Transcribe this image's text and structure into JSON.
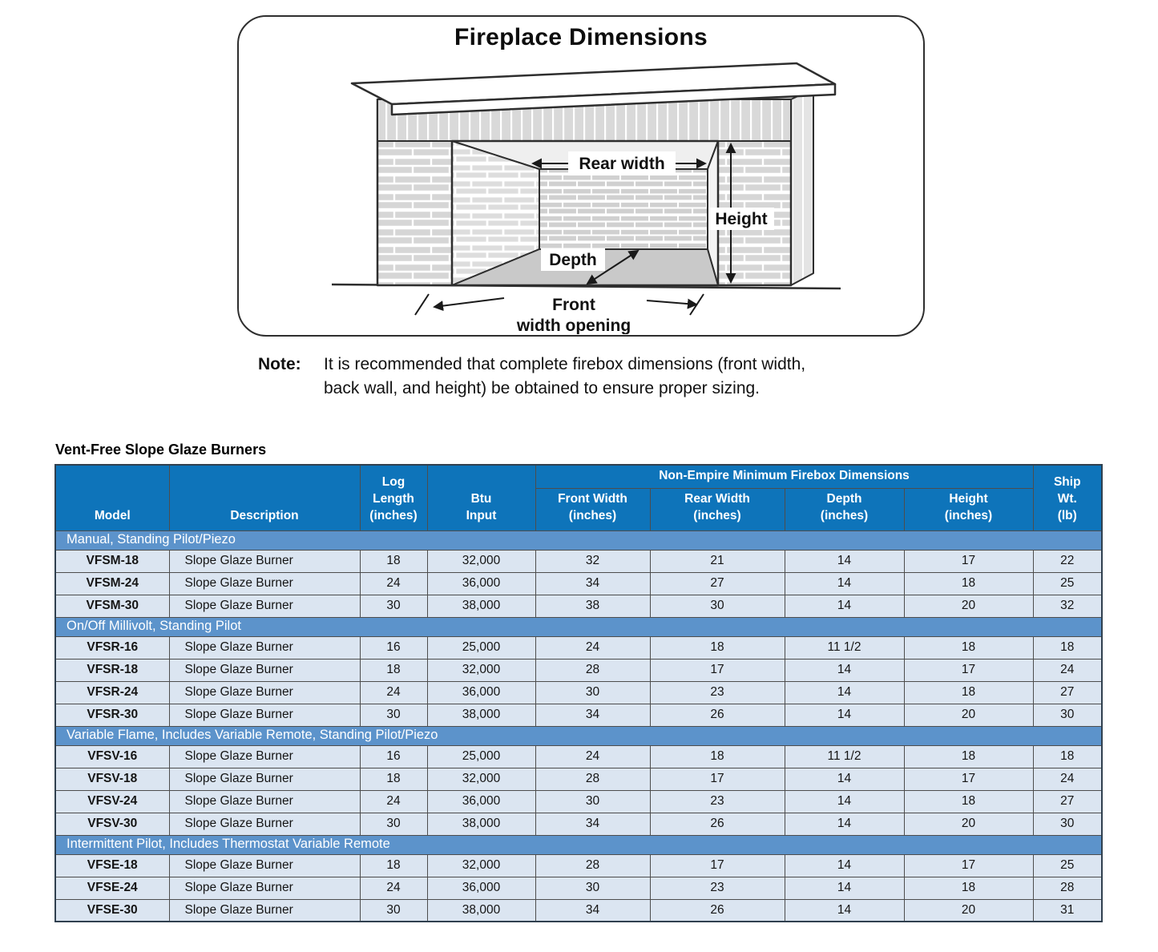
{
  "diagram": {
    "title": "Fireplace Dimensions",
    "labels": {
      "rear_width": "Rear width",
      "height": "Height",
      "depth": "Depth",
      "front_width_line1": "Front",
      "front_width_line2": "width opening"
    }
  },
  "note": {
    "label": "Note:",
    "text": "It is recommended that complete firebox dimensions (front width,\nback wall, and height) be obtained to ensure proper sizing."
  },
  "table": {
    "title": "Vent-Free Slope Glaze Burners",
    "colors": {
      "header_bg": "#0e74ba",
      "section_bg": "#5c93cb",
      "row_bg": "#dbe5f1",
      "header_text": "#ffffff",
      "cell_text": "#151515"
    },
    "headers": {
      "model": "Model",
      "description": "Description",
      "log_length": "Log\nLength\n(inches)",
      "btu_input": "Btu\nInput",
      "firebox_group": "Non-Empire Minimum Firebox Dimensions",
      "front_width": "Front Width\n(inches)",
      "rear_width": "Rear Width\n(inches)",
      "depth": "Depth\n(inches)",
      "height": "Height\n(inches)",
      "ship_wt": "Ship\nWt.\n(lb)"
    },
    "sections": [
      {
        "label": "Manual, Standing Pilot/Piezo",
        "rows": [
          [
            "VFSM-18",
            "Slope Glaze Burner",
            "18",
            "32,000",
            "32",
            "21",
            "14",
            "17",
            "22"
          ],
          [
            "VFSM-24",
            "Slope Glaze Burner",
            "24",
            "36,000",
            "34",
            "27",
            "14",
            "18",
            "25"
          ],
          [
            "VFSM-30",
            "Slope Glaze Burner",
            "30",
            "38,000",
            "38",
            "30",
            "14",
            "20",
            "32"
          ]
        ]
      },
      {
        "label": "On/Off Millivolt, Standing Pilot",
        "rows": [
          [
            "VFSR-16",
            "Slope Glaze Burner",
            "16",
            "25,000",
            "24",
            "18",
            "11 1/2",
            "18",
            "18"
          ],
          [
            "VFSR-18",
            "Slope Glaze Burner",
            "18",
            "32,000",
            "28",
            "17",
            "14",
            "17",
            "24"
          ],
          [
            "VFSR-24",
            "Slope Glaze Burner",
            "24",
            "36,000",
            "30",
            "23",
            "14",
            "18",
            "27"
          ],
          [
            "VFSR-30",
            "Slope Glaze Burner",
            "30",
            "38,000",
            "34",
            "26",
            "14",
            "20",
            "30"
          ]
        ]
      },
      {
        "label": "Variable Flame, Includes Variable Remote, Standing Pilot/Piezo",
        "rows": [
          [
            "VFSV-16",
            "Slope Glaze Burner",
            "16",
            "25,000",
            "24",
            "18",
            "11 1/2",
            "18",
            "18"
          ],
          [
            "VFSV-18",
            "Slope Glaze Burner",
            "18",
            "32,000",
            "28",
            "17",
            "14",
            "17",
            "24"
          ],
          [
            "VFSV-24",
            "Slope Glaze Burner",
            "24",
            "36,000",
            "30",
            "23",
            "14",
            "18",
            "27"
          ],
          [
            "VFSV-30",
            "Slope Glaze Burner",
            "30",
            "38,000",
            "34",
            "26",
            "14",
            "20",
            "30"
          ]
        ]
      },
      {
        "label": "Intermittent Pilot, Includes Thermostat Variable Remote",
        "rows": [
          [
            "VFSE-18",
            "Slope Glaze Burner",
            "18",
            "32,000",
            "28",
            "17",
            "14",
            "17",
            "25"
          ],
          [
            "VFSE-24",
            "Slope Glaze Burner",
            "24",
            "36,000",
            "30",
            "23",
            "14",
            "18",
            "28"
          ],
          [
            "VFSE-30",
            "Slope Glaze Burner",
            "30",
            "38,000",
            "34",
            "26",
            "14",
            "20",
            "31"
          ]
        ]
      }
    ]
  }
}
